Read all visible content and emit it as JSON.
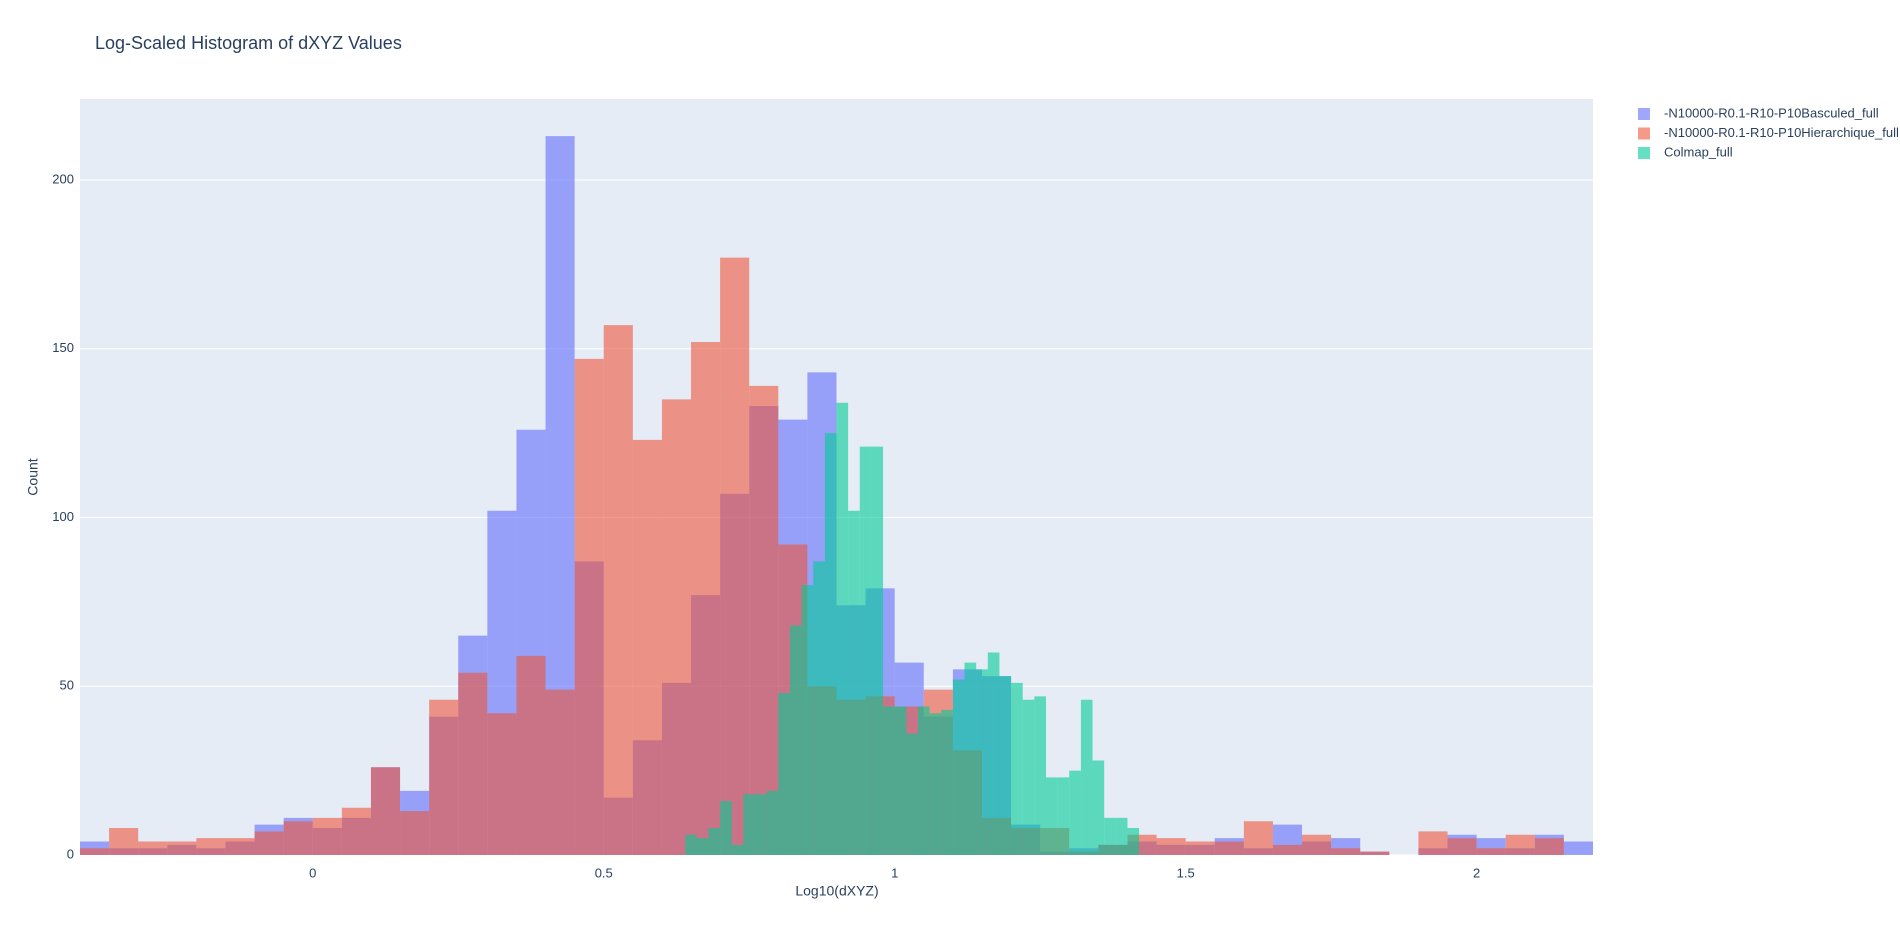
{
  "chart_data": {
    "type": "histogram",
    "title": "Log-Scaled Histogram of dXYZ Values",
    "x_label": "Log10(dXYZ)",
    "y_label": "Count",
    "xlim": [
      -0.4,
      2.2
    ],
    "ylim": [
      0,
      224
    ],
    "xticks": [
      0,
      0.5,
      1,
      1.5,
      2
    ],
    "yticks": [
      0,
      50,
      100,
      150,
      200
    ],
    "grid": true,
    "legend": "outside-right",
    "opacity": 0.6,
    "series": [
      {
        "name": "-N10000-R0.1-R10-P10Basculed_full",
        "color": "#636efa",
        "bins": [
          -0.4,
          -0.35,
          -0.3,
          -0.25,
          -0.2,
          -0.15,
          -0.1,
          -0.05,
          0,
          0.05,
          0.1,
          0.15,
          0.2,
          0.25,
          0.3,
          0.35,
          0.4,
          0.45,
          0.5,
          0.55,
          0.6,
          0.65,
          0.7,
          0.75,
          0.8,
          0.85,
          0.9,
          0.95,
          1,
          1.05,
          1.1,
          1.15,
          1.2,
          1.25,
          1.3,
          1.35,
          1.4,
          1.45,
          1.5,
          1.55,
          1.6,
          1.65,
          1.7,
          1.75,
          1.8,
          1.85,
          1.9,
          1.95,
          2,
          2.05,
          2.1,
          2.15,
          2.2
        ],
        "values": [
          4,
          2,
          2,
          3,
          2,
          4,
          9,
          11,
          8,
          11,
          26,
          19,
          41,
          65,
          102,
          126,
          213,
          87,
          17,
          34,
          51,
          77,
          107,
          133,
          129,
          143,
          74,
          79,
          57,
          41,
          55,
          53,
          9,
          1,
          2,
          3,
          4,
          3,
          3,
          5,
          2,
          9,
          4,
          5,
          1,
          0,
          2,
          6,
          5,
          2,
          6,
          4
        ]
      },
      {
        "name": "-N10000-R0.1-R10-P10Hierarchique_full",
        "color": "#EF553B",
        "bins": [
          -0.4,
          -0.35,
          -0.3,
          -0.25,
          -0.2,
          -0.15,
          -0.1,
          -0.05,
          0,
          0.05,
          0.1,
          0.15,
          0.2,
          0.25,
          0.3,
          0.35,
          0.4,
          0.45,
          0.5,
          0.55,
          0.6,
          0.65,
          0.7,
          0.75,
          0.8,
          0.85,
          0.9,
          0.95,
          1,
          1.05,
          1.1,
          1.15,
          1.2,
          1.25,
          1.3,
          1.35,
          1.4,
          1.45,
          1.5,
          1.55,
          1.6,
          1.65,
          1.7,
          1.75,
          1.8,
          1.85,
          1.9,
          1.95,
          2,
          2.05,
          2.1,
          2.15,
          2.2
        ],
        "values": [
          2,
          8,
          4,
          4,
          5,
          5,
          7,
          10,
          11,
          14,
          26,
          13,
          46,
          54,
          42,
          59,
          49,
          147,
          157,
          123,
          135,
          152,
          177,
          139,
          92,
          50,
          46,
          47,
          44,
          49,
          31,
          11,
          8,
          8,
          1,
          3,
          6,
          5,
          4,
          4,
          10,
          3,
          6,
          2,
          1,
          0,
          7,
          5,
          2,
          6,
          5,
          0
        ]
      },
      {
        "name": "Colmap_full",
        "color": "#00cc96",
        "bins": [
          0.64,
          0.66,
          0.68,
          0.7,
          0.72,
          0.74,
          0.76,
          0.78,
          0.8,
          0.82,
          0.84,
          0.86,
          0.88,
          0.9,
          0.92,
          0.94,
          0.96,
          0.98,
          1,
          1.02,
          1.04,
          1.06,
          1.08,
          1.1,
          1.12,
          1.14,
          1.16,
          1.18,
          1.2,
          1.22,
          1.24,
          1.26,
          1.28,
          1.3,
          1.32,
          1.34,
          1.36,
          1.38,
          1.4,
          1.42
        ],
        "values": [
          6,
          5,
          8,
          16,
          3,
          18,
          18,
          19,
          48,
          68,
          80,
          87,
          125,
          134,
          102,
          121,
          121,
          44,
          44,
          36,
          44,
          42,
          43,
          52,
          57,
          55,
          60,
          53,
          51,
          46,
          47,
          23,
          23,
          25,
          46,
          28,
          11,
          11,
          8
        ]
      }
    ]
  }
}
